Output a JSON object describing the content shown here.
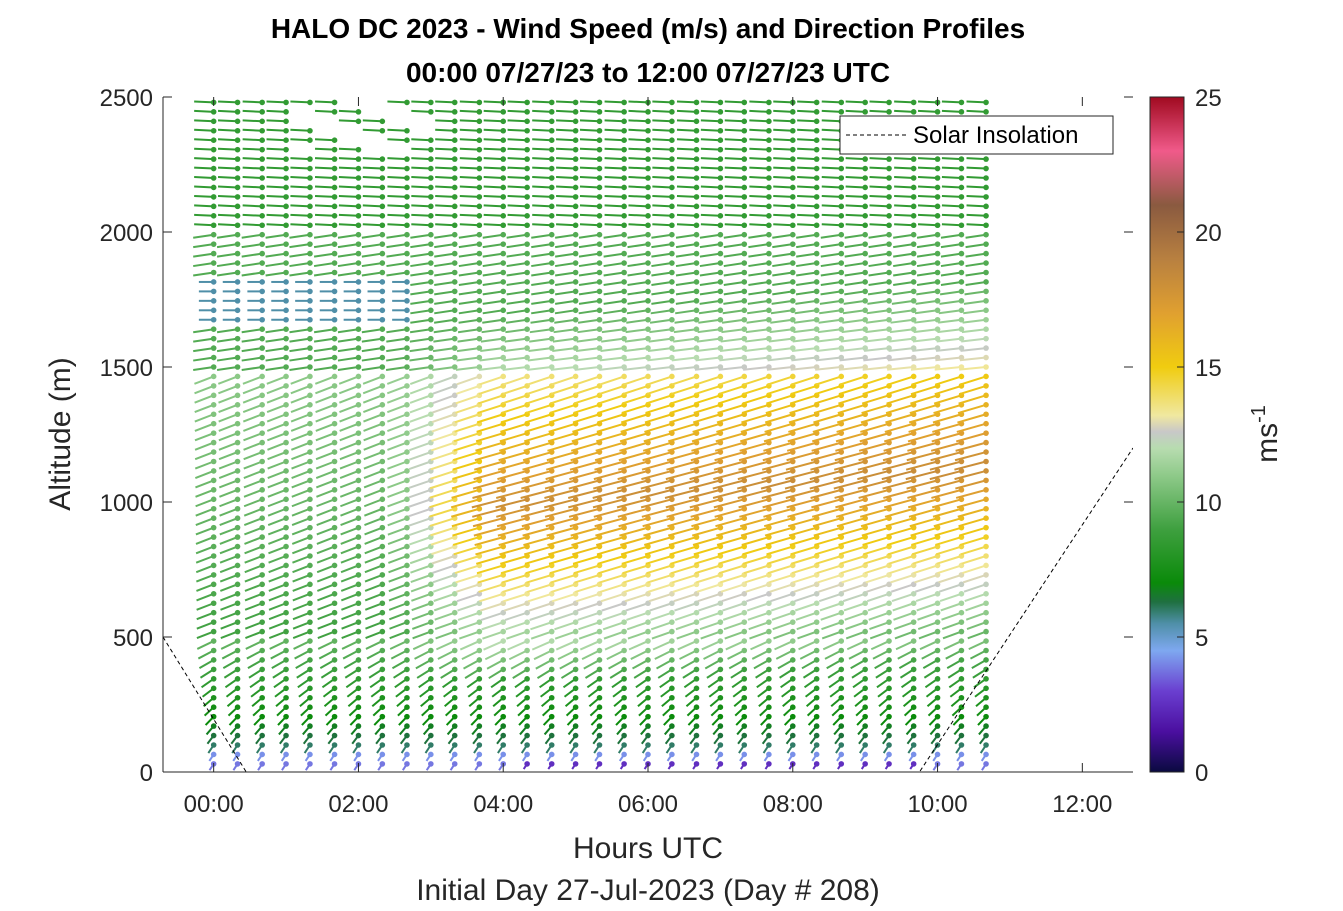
{
  "chart_data": {
    "type": "wind-barb-profile",
    "title_line1": "HALO DC 2023 - Wind Speed (m/s) and Direction Profiles",
    "title_line2": "00:00 07/27/23 to 12:00 07/27/23  UTC",
    "xlabel": "Hours UTC",
    "xlabel2": "Initial Day 27-Jul-2023 (Day # 208)",
    "ylabel": "Altitude (m)",
    "x_ticks": [
      "00:00",
      "02:00",
      "04:00",
      "06:00",
      "08:00",
      "10:00",
      "12:00"
    ],
    "x_tick_values": [
      0,
      2,
      4,
      6,
      8,
      10,
      12
    ],
    "y_ticks": [
      "0",
      "500",
      "1000",
      "1500",
      "2000",
      "2500"
    ],
    "y_tick_values": [
      0,
      500,
      1000,
      1500,
      2000,
      2500
    ],
    "xlim": [
      -0.7,
      12.7
    ],
    "ylim": [
      0,
      2500
    ],
    "colorbar": {
      "label": "ms",
      "label_superscript": "-1",
      "ticks": [
        "0",
        "5",
        "10",
        "15",
        "20",
        "25"
      ],
      "tick_values": [
        0,
        5,
        10,
        15,
        20,
        25
      ],
      "range": [
        0,
        25
      ],
      "stops": [
        {
          "v": 0,
          "c": "#0a0a40"
        },
        {
          "v": 1.5,
          "c": "#4b0fa0"
        },
        {
          "v": 3,
          "c": "#6a3fd0"
        },
        {
          "v": 4.5,
          "c": "#7ea8f0"
        },
        {
          "v": 5.5,
          "c": "#4f8fa8"
        },
        {
          "v": 6.3,
          "c": "#1f7040"
        },
        {
          "v": 7,
          "c": "#0a8a0a"
        },
        {
          "v": 9,
          "c": "#3fa040"
        },
        {
          "v": 11,
          "c": "#8fca8a"
        },
        {
          "v": 12,
          "c": "#b8dcb0"
        },
        {
          "v": 12.6,
          "c": "#c8c8c8"
        },
        {
          "v": 13.2,
          "c": "#f0e8a0"
        },
        {
          "v": 15,
          "c": "#f0cc10"
        },
        {
          "v": 17,
          "c": "#e0a030"
        },
        {
          "v": 19,
          "c": "#b88040"
        },
        {
          "v": 21,
          "c": "#8a5a40"
        },
        {
          "v": 23,
          "c": "#f05a8a"
        },
        {
          "v": 25,
          "c": "#a00a20"
        }
      ]
    },
    "legend": {
      "label": "Solar Insolation",
      "style": "dashed",
      "location": "top-right"
    },
    "solar_insolation_line": [
      {
        "x": -0.7,
        "y": 500
      },
      {
        "x": 0.45,
        "y": 0
      },
      {
        "x": 9.75,
        "y": 0
      },
      {
        "x": 12.7,
        "y": 1200
      }
    ],
    "profile_times_hours": [
      0.0,
      0.33,
      0.67,
      1.0,
      1.33,
      1.67,
      2.0,
      2.33,
      2.67,
      3.0,
      3.33,
      3.67,
      4.0,
      4.33,
      4.67,
      5.0,
      5.33,
      5.67,
      6.0,
      6.33,
      6.67,
      7.0,
      7.33,
      7.67,
      8.0,
      8.33,
      8.67,
      9.0,
      9.33,
      9.67,
      10.0,
      10.33,
      10.67
    ],
    "altitude_range_m": [
      30,
      2500
    ],
    "wind_regimes": [
      {
        "layer": "surface (0-100 m)",
        "speed_ms": 4,
        "direction_deg": 200
      },
      {
        "layer": "lower boundary layer (100-500 m)",
        "speed_ms": 7,
        "direction_deg": 200
      },
      {
        "layer": "low-level jet core (400-1400 m, 04:00-10:30)",
        "speed_ms": 16,
        "direction_deg": 245
      },
      {
        "layer": "1700-1800 m (01:00-03:00)",
        "speed_ms": 5.5,
        "direction_deg": 270
      },
      {
        "layer": "upper (2000-2500 m)",
        "speed_ms": 8,
        "direction_deg": 275
      }
    ]
  }
}
